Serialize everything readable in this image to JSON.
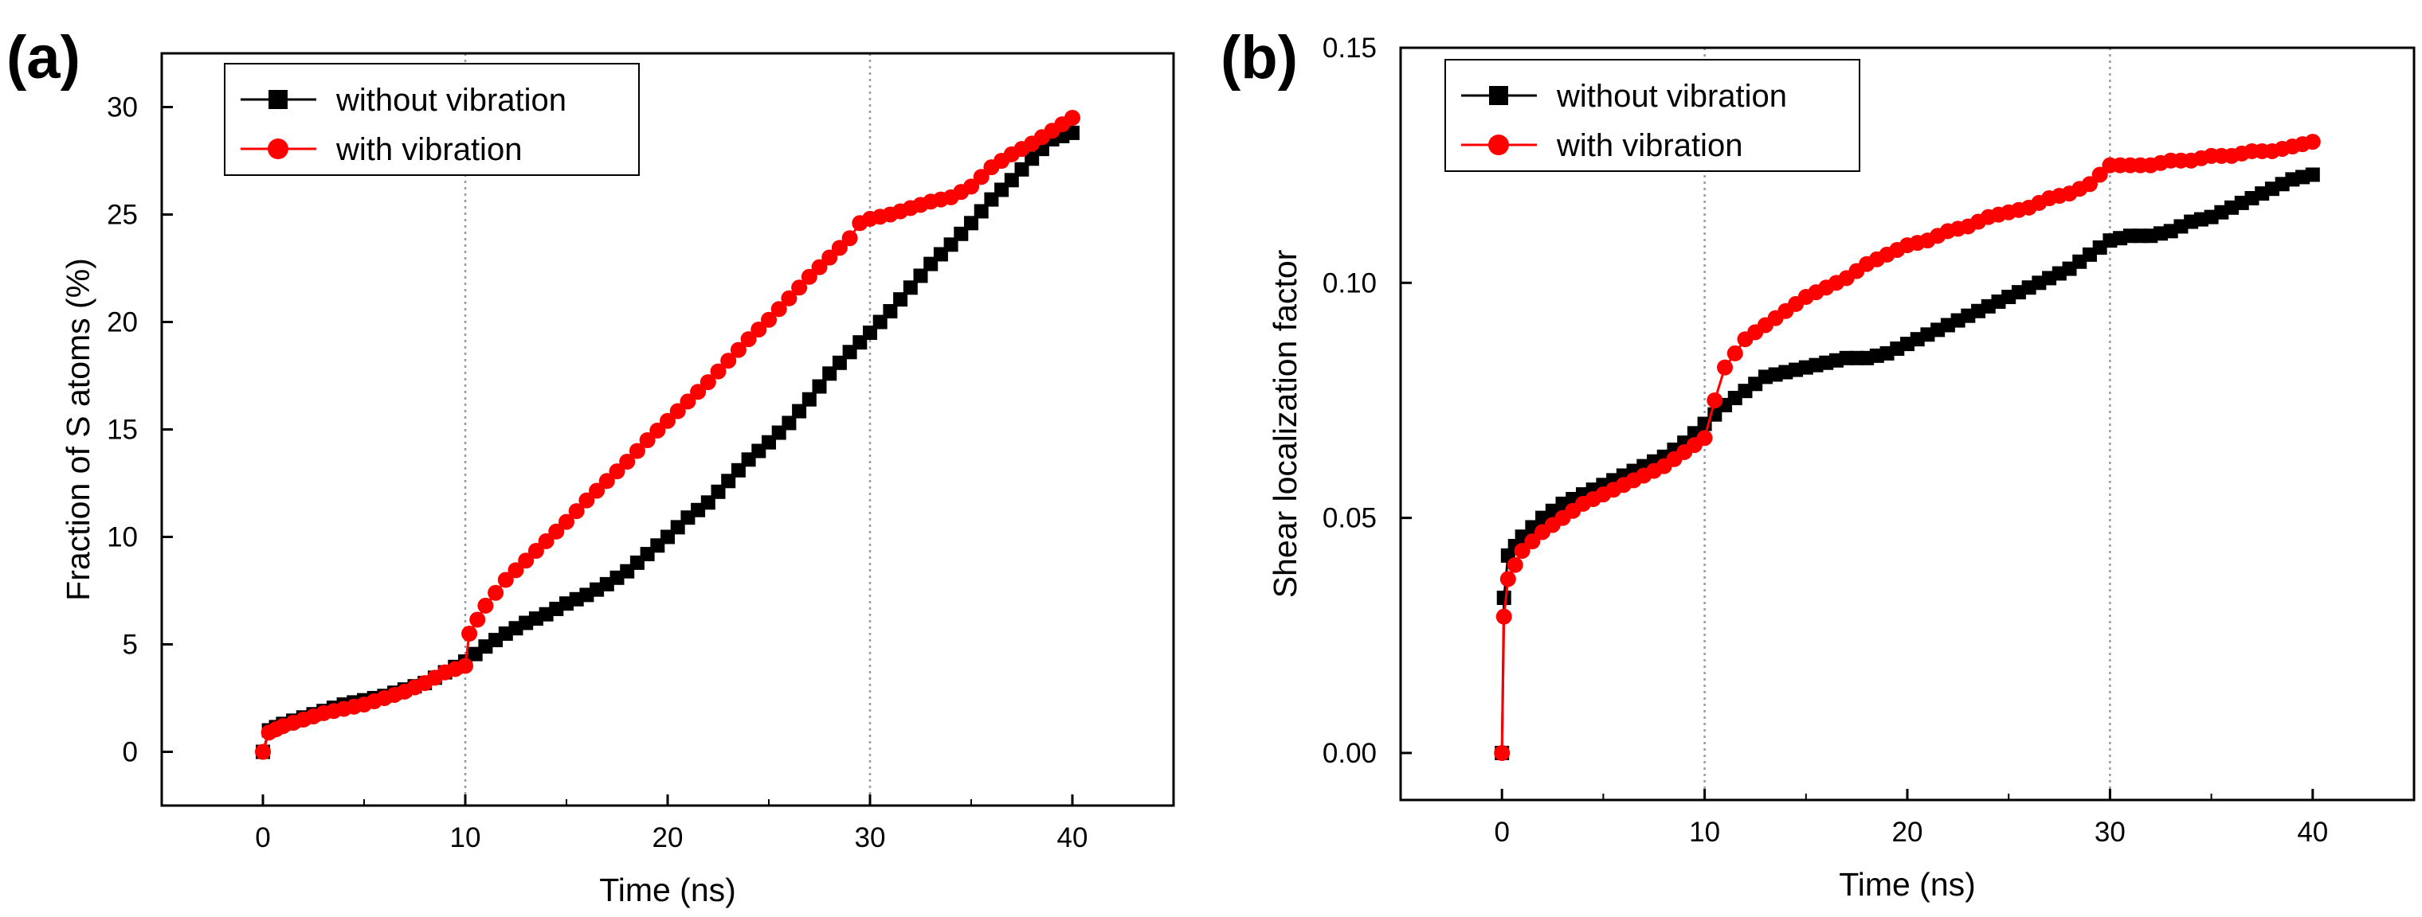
{
  "chart_data": [
    {
      "type": "line",
      "panel": "(a)",
      "xlabel": "Time (ns)",
      "ylabel": "Fraction of S atoms (%)",
      "xlim": [
        -5,
        45
      ],
      "ylim": [
        -2.5,
        32.5
      ],
      "xticks": [
        0,
        10,
        20,
        30,
        40
      ],
      "yticks": [
        0,
        5,
        10,
        15,
        20,
        25,
        30
      ],
      "xtick_labels": [
        "0",
        "10",
        "20",
        "30",
        "40"
      ],
      "ytick_labels": [
        "0",
        "5",
        "10",
        "15",
        "20",
        "25",
        "30"
      ],
      "vlines": [
        10,
        30
      ],
      "legend_position": "top-left",
      "series": [
        {
          "name": "without vibration",
          "color": "#000000",
          "marker": "square",
          "x": [
            0,
            0.3,
            1,
            2,
            3,
            4,
            5,
            6,
            7,
            8,
            9,
            10,
            11,
            12,
            13,
            14,
            15,
            16,
            17,
            18,
            19,
            20,
            21,
            22,
            23,
            24,
            25,
            26,
            27,
            28,
            29,
            30,
            31,
            32,
            33,
            34,
            35,
            36,
            37,
            38,
            39,
            40
          ],
          "y": [
            0,
            1.0,
            1.3,
            1.6,
            1.9,
            2.2,
            2.4,
            2.6,
            2.9,
            3.2,
            3.7,
            4.2,
            4.9,
            5.5,
            6.0,
            6.4,
            6.9,
            7.3,
            7.8,
            8.4,
            9.2,
            10.0,
            10.9,
            11.6,
            12.6,
            13.6,
            14.4,
            15.3,
            16.4,
            17.6,
            18.6,
            19.5,
            20.5,
            21.6,
            22.7,
            23.6,
            24.6,
            25.7,
            26.6,
            27.6,
            28.5,
            28.8
          ]
        },
        {
          "name": "with vibration",
          "color": "#ff0000",
          "marker": "circle",
          "x": [
            0,
            0.3,
            1,
            2,
            3,
            4,
            5,
            6,
            7,
            8,
            9,
            10,
            10.2,
            11,
            12,
            13,
            14,
            15,
            16,
            17,
            18,
            19,
            20,
            21,
            22,
            23,
            24,
            25,
            26,
            27,
            28,
            29,
            29.5,
            30,
            31,
            32,
            33,
            34,
            35,
            36,
            37,
            38,
            39,
            40
          ],
          "y": [
            0,
            0.9,
            1.2,
            1.5,
            1.8,
            2.0,
            2.2,
            2.5,
            2.8,
            3.2,
            3.7,
            4.0,
            5.5,
            6.8,
            8.0,
            8.9,
            9.8,
            10.7,
            11.7,
            12.6,
            13.5,
            14.5,
            15.4,
            16.3,
            17.2,
            18.2,
            19.2,
            20.1,
            21.1,
            22.1,
            23.0,
            23.9,
            24.6,
            24.8,
            25.0,
            25.3,
            25.6,
            25.8,
            26.3,
            27.2,
            27.8,
            28.3,
            28.9,
            29.5
          ]
        }
      ]
    },
    {
      "type": "line",
      "panel": "(b)",
      "xlabel": "Time (ns)",
      "ylabel": "Shear localization factor",
      "xlim": [
        -5,
        45
      ],
      "ylim": [
        -0.01,
        0.15
      ],
      "xticks": [
        0,
        10,
        20,
        30,
        40
      ],
      "yticks": [
        0,
        0.05,
        0.1,
        0.15
      ],
      "xtick_labels": [
        "0",
        "10",
        "20",
        "30",
        "40"
      ],
      "ytick_labels": [
        "0.00",
        "0.05",
        "0.10",
        "0.15"
      ],
      "vlines": [
        10,
        30
      ],
      "legend_position": "top-left",
      "series": [
        {
          "name": "without vibration",
          "color": "#000000",
          "marker": "square",
          "x": [
            0,
            0.1,
            0.3,
            1,
            2,
            3,
            4,
            5,
            6,
            7,
            8,
            9,
            10,
            11,
            12,
            13,
            14,
            15,
            16,
            17,
            18,
            19,
            20,
            21,
            22,
            23,
            24,
            25,
            26,
            27,
            28,
            29,
            30,
            31,
            32,
            33,
            34,
            35,
            36,
            37,
            38,
            39,
            40
          ],
          "y": [
            0,
            0.033,
            0.042,
            0.046,
            0.05,
            0.053,
            0.055,
            0.057,
            0.059,
            0.061,
            0.063,
            0.066,
            0.07,
            0.074,
            0.077,
            0.08,
            0.081,
            0.082,
            0.083,
            0.084,
            0.084,
            0.085,
            0.087,
            0.089,
            0.091,
            0.093,
            0.095,
            0.097,
            0.099,
            0.101,
            0.103,
            0.106,
            0.109,
            0.11,
            0.11,
            0.111,
            0.113,
            0.114,
            0.116,
            0.118,
            0.12,
            0.122,
            0.123
          ]
        },
        {
          "name": "with vibration",
          "color": "#ff0000",
          "marker": "circle",
          "x": [
            0,
            0.1,
            0.3,
            1,
            2,
            3,
            4,
            5,
            6,
            7,
            8,
            9,
            10,
            10.5,
            11,
            12,
            13,
            14,
            15,
            16,
            17,
            18,
            19,
            20,
            21,
            22,
            23,
            24,
            25,
            26,
            27,
            28,
            29,
            30,
            31,
            32,
            33,
            34,
            35,
            36,
            37,
            38,
            39,
            40
          ],
          "y": [
            0,
            0.029,
            0.037,
            0.043,
            0.047,
            0.05,
            0.053,
            0.055,
            0.057,
            0.059,
            0.061,
            0.064,
            0.067,
            0.075,
            0.082,
            0.088,
            0.091,
            0.094,
            0.097,
            0.099,
            0.101,
            0.104,
            0.106,
            0.108,
            0.109,
            0.111,
            0.112,
            0.114,
            0.115,
            0.116,
            0.118,
            0.119,
            0.121,
            0.125,
            0.125,
            0.125,
            0.126,
            0.126,
            0.127,
            0.127,
            0.128,
            0.128,
            0.129,
            0.13
          ]
        }
      ]
    }
  ]
}
